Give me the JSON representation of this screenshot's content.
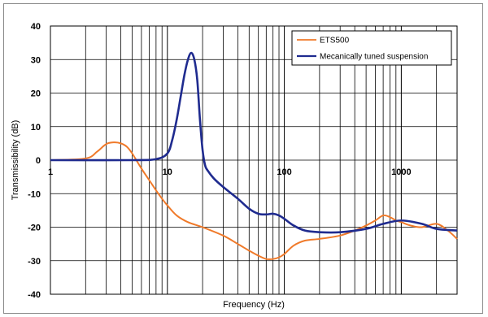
{
  "chart_data": {
    "type": "line",
    "title": "",
    "xlabel": "Frequency (Hz)",
    "ylabel": "Transmissibility (dB)",
    "x_scale": "log",
    "xlim": [
      1,
      3000
    ],
    "ylim": [
      -40,
      40
    ],
    "x_tick_labels": [
      "1",
      "10",
      "100",
      "1000"
    ],
    "x_tick_values": [
      1,
      10,
      100,
      1000
    ],
    "y_tick_values": [
      40,
      30,
      20,
      10,
      0,
      -10,
      -20,
      -30,
      -40
    ],
    "grid": true,
    "legend_position": "top-right",
    "series": [
      {
        "name": "ETS500",
        "color": "#f07a2a",
        "x": [
          1,
          2,
          2.5,
          3,
          3.5,
          4,
          4.5,
          5,
          6,
          7,
          8,
          9,
          10,
          12,
          15,
          20,
          30,
          40,
          50,
          60,
          70,
          80,
          90,
          100,
          120,
          150,
          200,
          300,
          400,
          500,
          600,
          700,
          800,
          900,
          1000,
          1200,
          1500,
          2000,
          2500,
          3000
        ],
        "y": [
          0,
          0.5,
          2.5,
          4.8,
          5.3,
          5.0,
          4.0,
          2.0,
          -2.5,
          -6.0,
          -9.0,
          -11.5,
          -13.5,
          -16.5,
          -18.5,
          -20.0,
          -22.5,
          -25.0,
          -27.0,
          -28.5,
          -29.5,
          -29.5,
          -29.0,
          -28.0,
          -25.5,
          -24.0,
          -23.5,
          -22.5,
          -21.0,
          -19.5,
          -18.0,
          -16.5,
          -17.0,
          -18.0,
          -18.5,
          -19.5,
          -20.0,
          -19.0,
          -21.0,
          -23.5
        ]
      },
      {
        "name": "Mecanically tuned suspension",
        "color": "#1f2b8f",
        "x": [
          1,
          5,
          8,
          10,
          11,
          12,
          13,
          14,
          15,
          16,
          17,
          18,
          19,
          20,
          21,
          22,
          25,
          30,
          40,
          50,
          60,
          70,
          80,
          90,
          100,
          120,
          150,
          200,
          300,
          500,
          700,
          1000,
          1500,
          2000,
          3000
        ],
        "y": [
          0,
          0,
          0.3,
          2.0,
          6.0,
          12.0,
          19.0,
          25.5,
          30.0,
          32.0,
          30.0,
          24.0,
          12.0,
          3.0,
          -1.5,
          -3.0,
          -5.5,
          -8.0,
          -11.5,
          -14.5,
          -16.0,
          -16.2,
          -16.0,
          -16.5,
          -17.5,
          -19.5,
          -21.0,
          -21.5,
          -21.5,
          -20.5,
          -19.0,
          -18.0,
          -19.0,
          -20.5,
          -21.0
        ]
      }
    ]
  }
}
